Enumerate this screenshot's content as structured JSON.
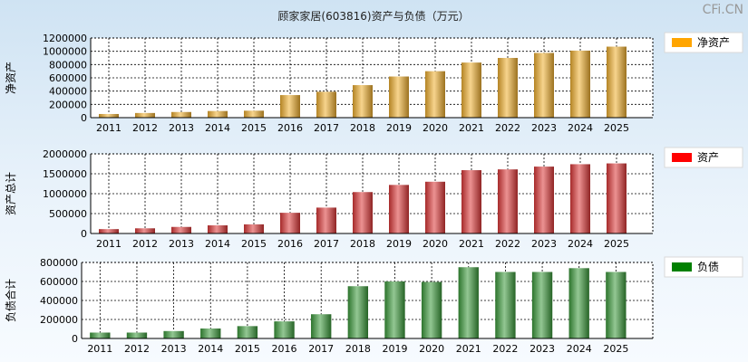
{
  "title": "顾家家居(603816)资产与负债（万元）",
  "watermark": "CFi.CN",
  "chart_data": [
    {
      "type": "bar",
      "ylabel": "净资产",
      "legend": "净资产",
      "legend_color": "#ffa500",
      "bar_color": "#f0b030",
      "categories": [
        "2011",
        "2012",
        "2013",
        "2014",
        "2015",
        "2016",
        "2017",
        "2018",
        "2019",
        "2020",
        "2021",
        "2022",
        "2023",
        "2024",
        "2025"
      ],
      "values": [
        55000,
        70000,
        85000,
        100000,
        105000,
        340000,
        390000,
        490000,
        620000,
        700000,
        830000,
        900000,
        975000,
        1010000,
        1070000
      ],
      "yticks": [
        "1200000",
        "1000000",
        "800000",
        "600000",
        "400000",
        "200000",
        "0"
      ],
      "ylim": [
        0,
        1200000
      ],
      "grid": true,
      "legend_position": "right"
    },
    {
      "type": "bar",
      "ylabel": "资产总计",
      "legend": "资产",
      "legend_color": "#ff0000",
      "bar_color": "#dd3838",
      "categories": [
        "2011",
        "2012",
        "2013",
        "2014",
        "2015",
        "2016",
        "2017",
        "2018",
        "2019",
        "2020",
        "2021",
        "2022",
        "2023",
        "2024",
        "2025"
      ],
      "values": [
        110000,
        130000,
        165000,
        205000,
        230000,
        520000,
        650000,
        1040000,
        1220000,
        1300000,
        1590000,
        1610000,
        1680000,
        1740000,
        1760000
      ],
      "yticks": [
        "2000000",
        "1500000",
        "1000000",
        "500000",
        "0"
      ],
      "ylim": [
        0,
        2000000
      ],
      "grid": true,
      "legend_position": "right"
    },
    {
      "type": "bar",
      "ylabel": "负债合计",
      "legend": "负债",
      "legend_color": "#008000",
      "bar_color": "#3a9a3a",
      "categories": [
        "2011",
        "2012",
        "2013",
        "2014",
        "2015",
        "2016",
        "2017",
        "2018",
        "2019",
        "2020",
        "2021",
        "2022",
        "2023",
        "2024",
        "2025"
      ],
      "values": [
        62000,
        62000,
        78000,
        105000,
        130000,
        180000,
        255000,
        550000,
        600000,
        595000,
        750000,
        700000,
        700000,
        740000,
        700000
      ],
      "yticks": [
        "800000",
        "600000",
        "400000",
        "200000",
        "0"
      ],
      "ylim": [
        0,
        800000
      ],
      "grid": true,
      "legend_position": "right"
    }
  ]
}
